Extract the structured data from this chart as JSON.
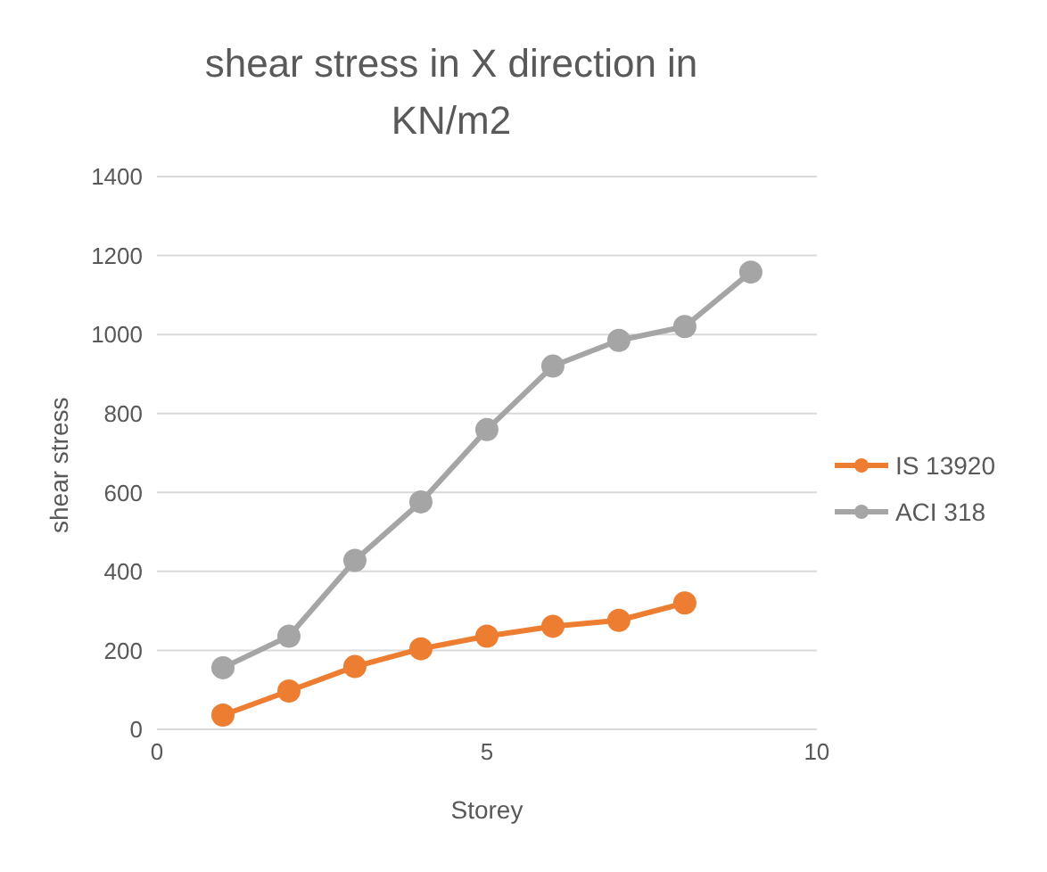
{
  "chart_data": {
    "type": "line",
    "title": "shear stress in X direction in KN/m2",
    "xlabel": "Storey",
    "ylabel": "shear stress",
    "xlim": [
      0,
      10
    ],
    "xticks": [
      0,
      5,
      10
    ],
    "ylim": [
      0,
      1400
    ],
    "yticks": [
      0,
      200,
      400,
      600,
      800,
      1000,
      1200,
      1400
    ],
    "grid": "y",
    "legend": "right",
    "marker": "circle",
    "series": [
      {
        "name": "IS 13920",
        "color": "#ed7d31",
        "x": [
          1,
          2,
          3,
          4,
          5,
          6,
          7,
          8
        ],
        "values": [
          36,
          97,
          159,
          204,
          236,
          261,
          276,
          320
        ]
      },
      {
        "name": "ACI 318",
        "color": "#a5a5a5",
        "x": [
          1,
          2,
          3,
          4,
          5,
          6,
          7,
          8,
          9
        ],
        "values": [
          156,
          236,
          428,
          576,
          759,
          920,
          985,
          1020,
          1158
        ]
      }
    ]
  }
}
